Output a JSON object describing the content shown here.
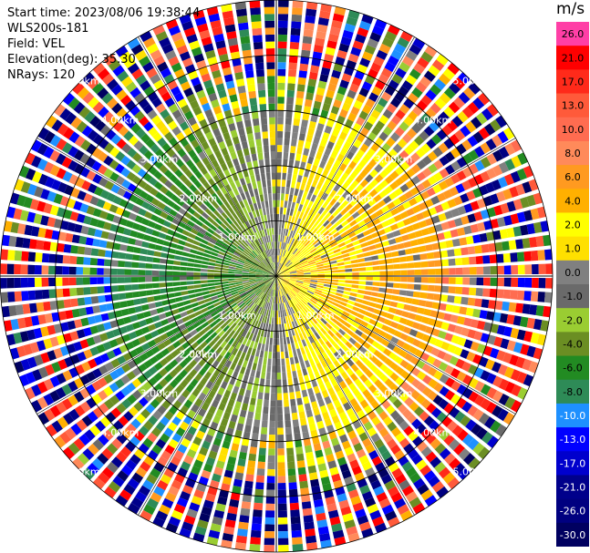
{
  "info": {
    "start_time": "Start time: 2023/08/06 19:38:44",
    "device": "WLS200s-181",
    "field": "Field: VEL",
    "elevation": "Elevation(deg): 35.30",
    "nrays": "NRays: 120"
  },
  "colorbar": {
    "unit": "m/s",
    "levels": [
      {
        "label": "26.0",
        "color": "#ff3fa6"
      },
      {
        "label": "21.0",
        "color": "#ff0000"
      },
      {
        "label": "17.0",
        "color": "#ff2a1a"
      },
      {
        "label": "13.0",
        "color": "#ff5a3a"
      },
      {
        "label": "10.0",
        "color": "#ff6c50"
      },
      {
        "label": "8.0",
        "color": "#ff8a5a"
      },
      {
        "label": "6.0",
        "color": "#ff9a20"
      },
      {
        "label": "4.0",
        "color": "#ffb000"
      },
      {
        "label": "2.0",
        "color": "#ffff00"
      },
      {
        "label": "1.0",
        "color": "#ffe000"
      },
      {
        "label": "0.0",
        "color": "#808080"
      },
      {
        "label": "-1.0",
        "color": "#6a6a6a"
      },
      {
        "label": "-2.0",
        "color": "#9acd32"
      },
      {
        "label": "-4.0",
        "color": "#6b8e23"
      },
      {
        "label": "-6.0",
        "color": "#228b22"
      },
      {
        "label": "-8.0",
        "color": "#2e8b57"
      },
      {
        "label": "-10.0",
        "color": "#1e90ff"
      },
      {
        "label": "-13.0",
        "color": "#0000ff"
      },
      {
        "label": "-17.0",
        "color": "#0000cd"
      },
      {
        "label": "-21.0",
        "color": "#00008b"
      },
      {
        "label": "-26.0",
        "color": "#000080"
      },
      {
        "label": "-30.0",
        "color": "#000060"
      }
    ]
  },
  "chart_data": {
    "type": "heatmap",
    "projection": "polar (PPI)",
    "n_rays": 120,
    "range_max_km": 5.0,
    "range_rings_km": [
      1.0,
      2.0,
      3.0,
      4.0,
      5.0
    ],
    "ring_labels": [
      "1.00km",
      "2.00km",
      "3.00km",
      "4.00km",
      "5.00km"
    ],
    "ring_label_positions": [
      "upper-left",
      "upper-right",
      "lower-left",
      "lower-right"
    ],
    "spokes_deg": [
      0,
      30,
      60,
      90,
      120,
      150,
      180,
      210,
      240,
      270,
      300,
      330
    ],
    "velocity_pattern": [
      {
        "sector": "east (az 20-160)",
        "range_km": [
          0.0,
          3.0
        ],
        "velocity_ms": [
          1.0,
          8.0
        ]
      },
      {
        "sector": "west (az 200-340)",
        "range_km": [
          0.0,
          3.0
        ],
        "velocity_ms": [
          -8.0,
          -1.0
        ]
      },
      {
        "sector": "all",
        "range_km": [
          3.5,
          5.0
        ],
        "velocity_ms": "noisy, full scale -30 to 26"
      }
    ]
  }
}
